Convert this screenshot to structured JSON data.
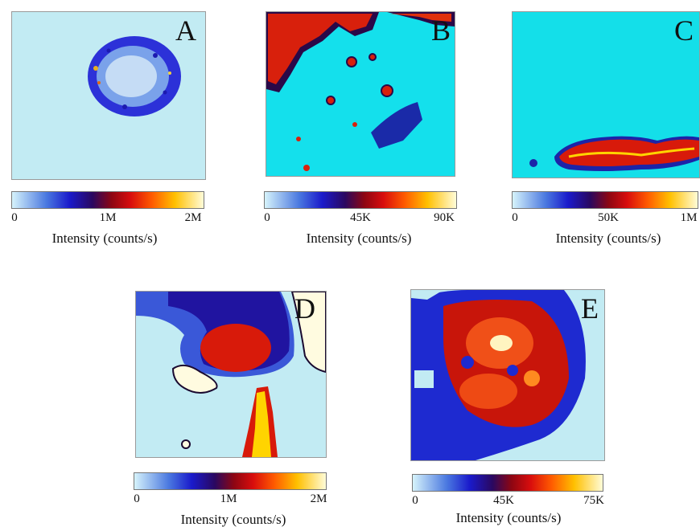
{
  "panels": [
    {
      "id": "A",
      "letter": "A",
      "ticks": [
        "0",
        "1M",
        "2M"
      ],
      "colorbar_label": "Intensity (counts/s)",
      "colors": {
        "background": "#bfeaf2",
        "cell": "#2b2fd6",
        "core": "#cfe6f6"
      }
    },
    {
      "id": "B",
      "letter": "B",
      "ticks": [
        "0",
        "45K",
        "90K"
      ],
      "colorbar_label": "Intensity (counts/s)",
      "colors": {
        "background": "#14e0ec",
        "hot": "#e0200c",
        "edge": "#2a0848"
      }
    },
    {
      "id": "C",
      "letter": "C",
      "ticks": [
        "0",
        "50K",
        "1M"
      ],
      "colorbar_label": "Intensity (counts/s)",
      "colors": {
        "background": "#14dfe9",
        "hot": "#d81a0a",
        "glow": "#ffd400"
      }
    },
    {
      "id": "D",
      "letter": "D",
      "ticks": [
        "0",
        "1M",
        "2M"
      ],
      "colorbar_label": "Intensity (counts/s)",
      "colors": {
        "background": "#bfeaf2",
        "dark": "#1a12b8",
        "hot": "#d61a0a"
      }
    },
    {
      "id": "E",
      "letter": "E",
      "ticks": [
        "0",
        "45K",
        "75K"
      ],
      "colorbar_label": "Intensity (counts/s)",
      "colors": {
        "background": "#bfeaf2",
        "dark": "#1e2ad0",
        "hot": "#e63010"
      }
    }
  ]
}
